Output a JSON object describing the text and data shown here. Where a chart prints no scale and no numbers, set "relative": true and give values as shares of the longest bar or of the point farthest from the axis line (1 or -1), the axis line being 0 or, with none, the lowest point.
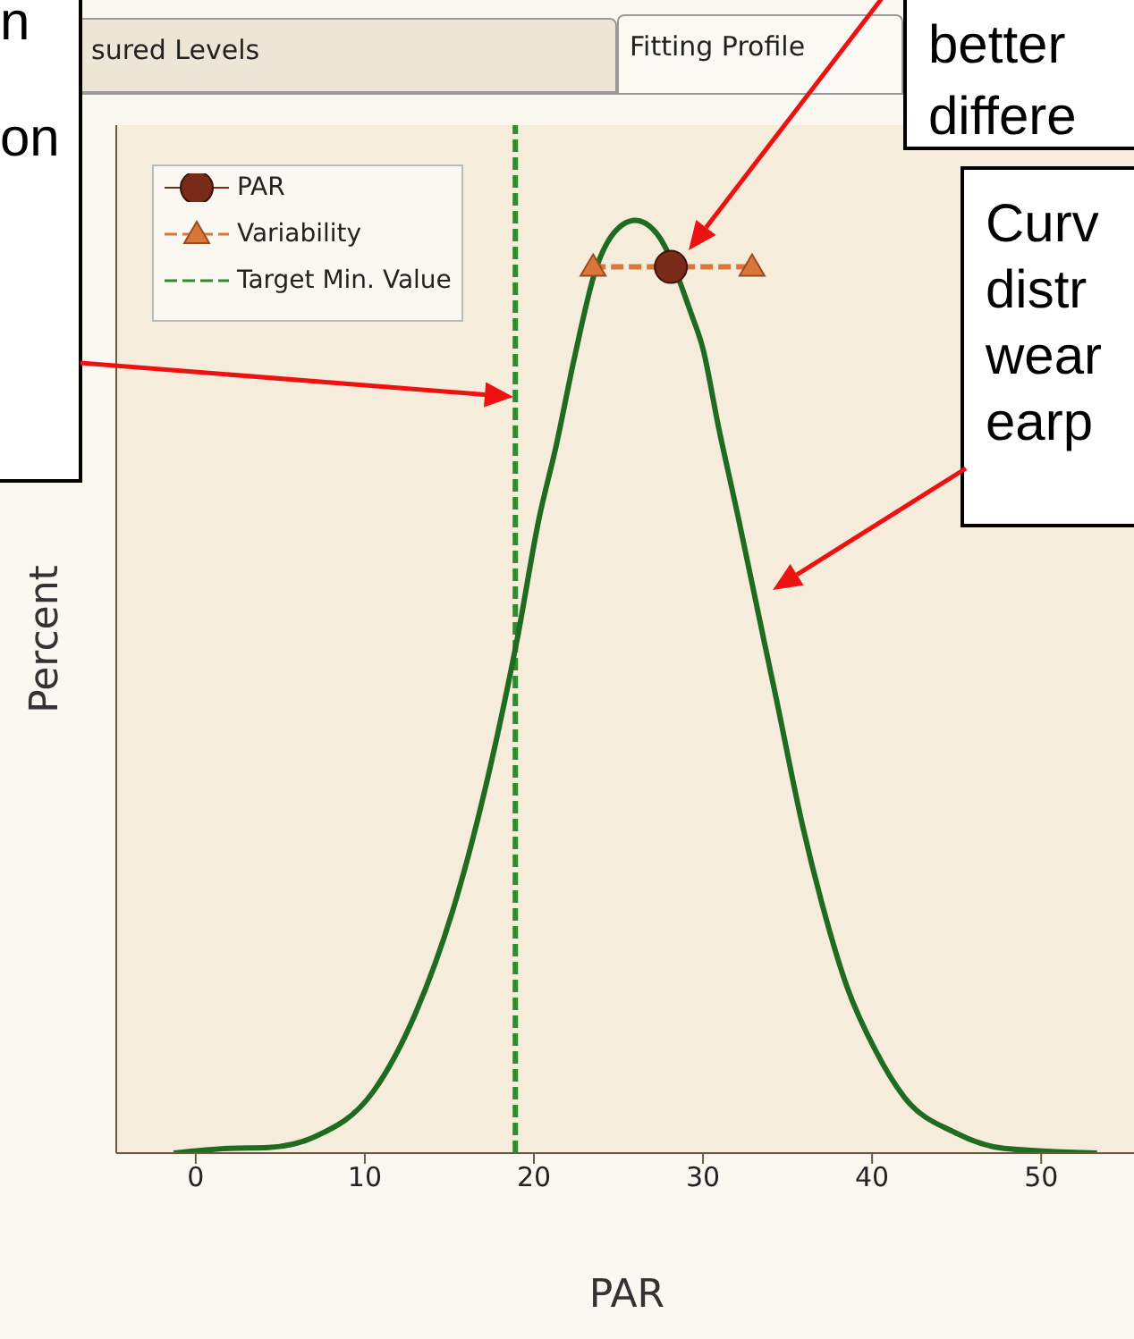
{
  "chart_data": {
    "type": "line",
    "xlabel": "PAR",
    "ylabel": "Percent",
    "relative": true,
    "xlim": [
      -4.7,
      55.7
    ],
    "xticks": [
      0,
      10,
      20,
      30,
      40,
      50
    ],
    "legend": "top left",
    "series": [
      {
        "color": "#1f6b1f",
        "marker": "none",
        "x": [
          -1.3,
          2,
          4.3,
          7.1,
          10.5,
          13,
          15.2,
          18.1,
          19,
          20.3,
          21.3,
          22.4,
          23.6,
          25.3,
          26,
          27.3,
          29.3,
          30,
          30.9,
          32.1,
          33.6,
          34.3,
          35.9,
          37,
          38.5,
          40.2,
          41.9,
          44.9,
          47.8,
          53.3
        ],
        "values": [
          0,
          0.005,
          0.006,
          0.018,
          0.066,
          0.15,
          0.26,
          0.47,
          0.55,
          0.68,
          0.757,
          0.853,
          0.944,
          0.996,
          1,
          0.985,
          0.9,
          0.862,
          0.78,
          0.68,
          0.55,
          0.49,
          0.35,
          0.27,
          0.179,
          0.11,
          0.06,
          0.022,
          0.005,
          0
        ]
      },
      {
        "type": "scatter",
        "name": "PAR",
        "color": "#7a2a18",
        "marker": "circle",
        "x": [
          28.1
        ],
        "values": [
          0.95
        ]
      },
      {
        "type": "line",
        "name": "Variability",
        "color": "#d9763a",
        "marker": "triangle",
        "line_style": "dashed",
        "x": [
          23.5,
          32.9
        ],
        "values": [
          0.95,
          0.95
        ]
      }
    ],
    "ref_lines": [
      {
        "axis": "x",
        "value": 18.9,
        "label": "Target Min. Value",
        "color": "#2e8b2e",
        "line_style": "dashed"
      }
    ],
    "annotations": [
      "sured Levels",
      "Fitting Profile",
      "n\non",
      "better\ndiffere",
      "Curv\ndistr\nwear\nearp"
    ]
  }
}
